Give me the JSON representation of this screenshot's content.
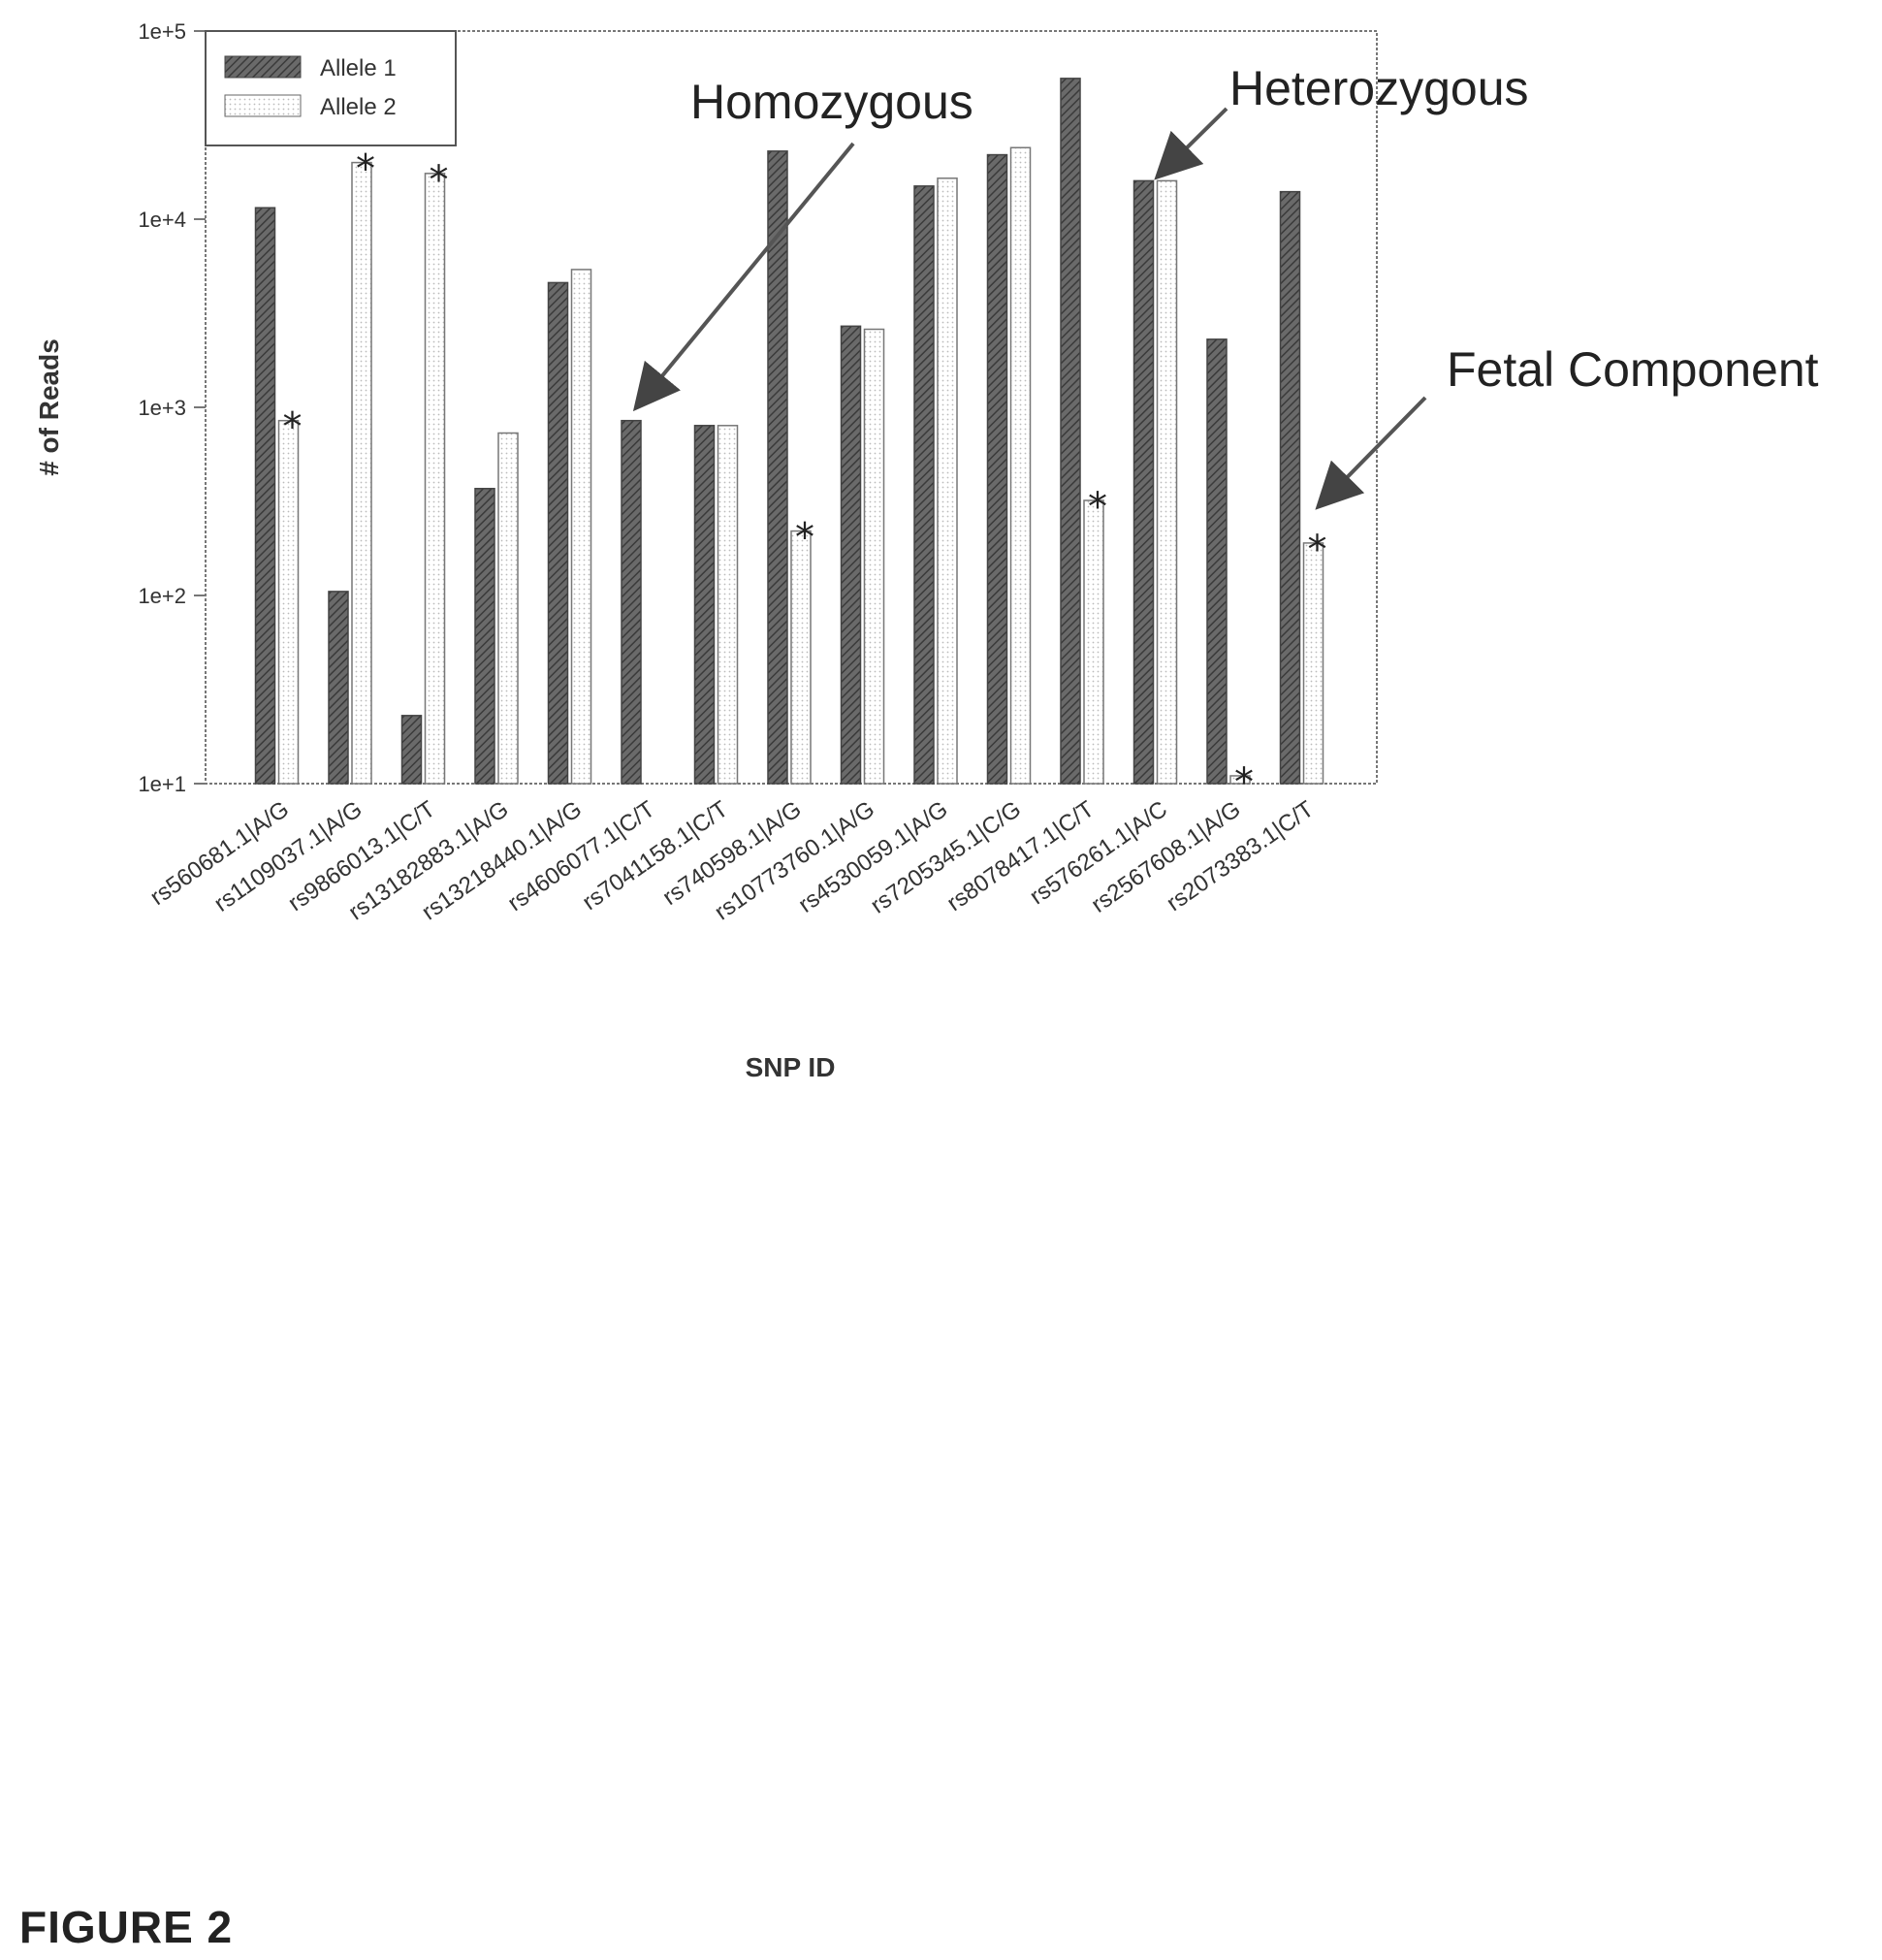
{
  "figure_caption": "FIGURE 2",
  "chart_data": {
    "type": "bar",
    "scale": "log",
    "ylim": [
      10,
      100000
    ],
    "yticks": [
      "1e+1",
      "1e+2",
      "1e+3",
      "1e+4",
      "1e+5"
    ],
    "ylabel": "# of Reads",
    "xlabel": "SNP ID",
    "legend": {
      "placement": "top-left",
      "entries": [
        "Allele 1",
        "Allele 2"
      ]
    },
    "categories": [
      "rs560681.1|A/G",
      "rs1109037.1|A/G",
      "rs9866013.1|C/T",
      "rs13182883.1|A/G",
      "rs13218440.1|A/G",
      "rs4606077.1|C/T",
      "rs7041158.1|C/T",
      "rs740598.1|A/G",
      "rs10773760.1|A/G",
      "rs4530059.1|A/G",
      "rs7205345.1|C/G",
      "rs8078417.1|C/T",
      "rs576261.1|A/C",
      "rs2567608.1|A/G",
      "rs2073383.1|C/T"
    ],
    "series": [
      {
        "name": "Allele 1",
        "values": [
          11500,
          105,
          23,
          370,
          4600,
          850,
          800,
          23000,
          2700,
          15000,
          22000,
          56000,
          16000,
          2300,
          14000
        ]
      },
      {
        "name": "Allele 2",
        "values": [
          850,
          20000,
          17500,
          730,
          5400,
          10,
          800,
          220,
          2600,
          16500,
          24000,
          320,
          16000,
          11,
          190
        ]
      }
    ],
    "starred": [
      0,
      1,
      2,
      7,
      11,
      13,
      14
    ],
    "star_symbol": "*",
    "annotations": [
      {
        "text": "Homozygous",
        "category_index": 5
      },
      {
        "text": "Heterozygous",
        "category_index": 12
      },
      {
        "text": "Fetal Component",
        "category_index": 14
      }
    ]
  }
}
